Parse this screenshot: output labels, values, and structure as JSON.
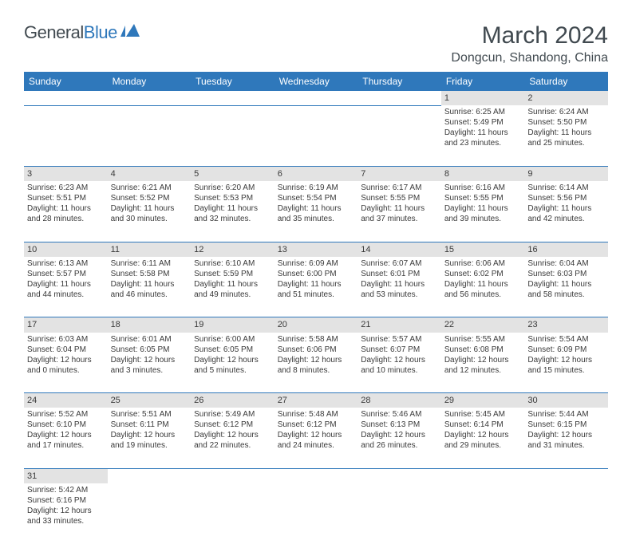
{
  "logo": {
    "text_part1": "General",
    "text_part2": "Blue"
  },
  "title": "March 2024",
  "location": "Dongcun, Shandong, China",
  "header_bg": "#2f78bb",
  "header_fg": "#ffffff",
  "daynum_bg": "#e3e3e3",
  "border_color": "#2f78bb",
  "text_color": "#3a3a3a",
  "title_color": "#414a50",
  "daynames": [
    "Sunday",
    "Monday",
    "Tuesday",
    "Wednesday",
    "Thursday",
    "Friday",
    "Saturday"
  ],
  "weeks": [
    [
      null,
      null,
      null,
      null,
      null,
      {
        "n": "1",
        "sr": "Sunrise: 6:25 AM",
        "ss": "Sunset: 5:49 PM",
        "d1": "Daylight: 11 hours",
        "d2": "and 23 minutes."
      },
      {
        "n": "2",
        "sr": "Sunrise: 6:24 AM",
        "ss": "Sunset: 5:50 PM",
        "d1": "Daylight: 11 hours",
        "d2": "and 25 minutes."
      }
    ],
    [
      {
        "n": "3",
        "sr": "Sunrise: 6:23 AM",
        "ss": "Sunset: 5:51 PM",
        "d1": "Daylight: 11 hours",
        "d2": "and 28 minutes."
      },
      {
        "n": "4",
        "sr": "Sunrise: 6:21 AM",
        "ss": "Sunset: 5:52 PM",
        "d1": "Daylight: 11 hours",
        "d2": "and 30 minutes."
      },
      {
        "n": "5",
        "sr": "Sunrise: 6:20 AM",
        "ss": "Sunset: 5:53 PM",
        "d1": "Daylight: 11 hours",
        "d2": "and 32 minutes."
      },
      {
        "n": "6",
        "sr": "Sunrise: 6:19 AM",
        "ss": "Sunset: 5:54 PM",
        "d1": "Daylight: 11 hours",
        "d2": "and 35 minutes."
      },
      {
        "n": "7",
        "sr": "Sunrise: 6:17 AM",
        "ss": "Sunset: 5:55 PM",
        "d1": "Daylight: 11 hours",
        "d2": "and 37 minutes."
      },
      {
        "n": "8",
        "sr": "Sunrise: 6:16 AM",
        "ss": "Sunset: 5:55 PM",
        "d1": "Daylight: 11 hours",
        "d2": "and 39 minutes."
      },
      {
        "n": "9",
        "sr": "Sunrise: 6:14 AM",
        "ss": "Sunset: 5:56 PM",
        "d1": "Daylight: 11 hours",
        "d2": "and 42 minutes."
      }
    ],
    [
      {
        "n": "10",
        "sr": "Sunrise: 6:13 AM",
        "ss": "Sunset: 5:57 PM",
        "d1": "Daylight: 11 hours",
        "d2": "and 44 minutes."
      },
      {
        "n": "11",
        "sr": "Sunrise: 6:11 AM",
        "ss": "Sunset: 5:58 PM",
        "d1": "Daylight: 11 hours",
        "d2": "and 46 minutes."
      },
      {
        "n": "12",
        "sr": "Sunrise: 6:10 AM",
        "ss": "Sunset: 5:59 PM",
        "d1": "Daylight: 11 hours",
        "d2": "and 49 minutes."
      },
      {
        "n": "13",
        "sr": "Sunrise: 6:09 AM",
        "ss": "Sunset: 6:00 PM",
        "d1": "Daylight: 11 hours",
        "d2": "and 51 minutes."
      },
      {
        "n": "14",
        "sr": "Sunrise: 6:07 AM",
        "ss": "Sunset: 6:01 PM",
        "d1": "Daylight: 11 hours",
        "d2": "and 53 minutes."
      },
      {
        "n": "15",
        "sr": "Sunrise: 6:06 AM",
        "ss": "Sunset: 6:02 PM",
        "d1": "Daylight: 11 hours",
        "d2": "and 56 minutes."
      },
      {
        "n": "16",
        "sr": "Sunrise: 6:04 AM",
        "ss": "Sunset: 6:03 PM",
        "d1": "Daylight: 11 hours",
        "d2": "and 58 minutes."
      }
    ],
    [
      {
        "n": "17",
        "sr": "Sunrise: 6:03 AM",
        "ss": "Sunset: 6:04 PM",
        "d1": "Daylight: 12 hours",
        "d2": "and 0 minutes."
      },
      {
        "n": "18",
        "sr": "Sunrise: 6:01 AM",
        "ss": "Sunset: 6:05 PM",
        "d1": "Daylight: 12 hours",
        "d2": "and 3 minutes."
      },
      {
        "n": "19",
        "sr": "Sunrise: 6:00 AM",
        "ss": "Sunset: 6:05 PM",
        "d1": "Daylight: 12 hours",
        "d2": "and 5 minutes."
      },
      {
        "n": "20",
        "sr": "Sunrise: 5:58 AM",
        "ss": "Sunset: 6:06 PM",
        "d1": "Daylight: 12 hours",
        "d2": "and 8 minutes."
      },
      {
        "n": "21",
        "sr": "Sunrise: 5:57 AM",
        "ss": "Sunset: 6:07 PM",
        "d1": "Daylight: 12 hours",
        "d2": "and 10 minutes."
      },
      {
        "n": "22",
        "sr": "Sunrise: 5:55 AM",
        "ss": "Sunset: 6:08 PM",
        "d1": "Daylight: 12 hours",
        "d2": "and 12 minutes."
      },
      {
        "n": "23",
        "sr": "Sunrise: 5:54 AM",
        "ss": "Sunset: 6:09 PM",
        "d1": "Daylight: 12 hours",
        "d2": "and 15 minutes."
      }
    ],
    [
      {
        "n": "24",
        "sr": "Sunrise: 5:52 AM",
        "ss": "Sunset: 6:10 PM",
        "d1": "Daylight: 12 hours",
        "d2": "and 17 minutes."
      },
      {
        "n": "25",
        "sr": "Sunrise: 5:51 AM",
        "ss": "Sunset: 6:11 PM",
        "d1": "Daylight: 12 hours",
        "d2": "and 19 minutes."
      },
      {
        "n": "26",
        "sr": "Sunrise: 5:49 AM",
        "ss": "Sunset: 6:12 PM",
        "d1": "Daylight: 12 hours",
        "d2": "and 22 minutes."
      },
      {
        "n": "27",
        "sr": "Sunrise: 5:48 AM",
        "ss": "Sunset: 6:12 PM",
        "d1": "Daylight: 12 hours",
        "d2": "and 24 minutes."
      },
      {
        "n": "28",
        "sr": "Sunrise: 5:46 AM",
        "ss": "Sunset: 6:13 PM",
        "d1": "Daylight: 12 hours",
        "d2": "and 26 minutes."
      },
      {
        "n": "29",
        "sr": "Sunrise: 5:45 AM",
        "ss": "Sunset: 6:14 PM",
        "d1": "Daylight: 12 hours",
        "d2": "and 29 minutes."
      },
      {
        "n": "30",
        "sr": "Sunrise: 5:44 AM",
        "ss": "Sunset: 6:15 PM",
        "d1": "Daylight: 12 hours",
        "d2": "and 31 minutes."
      }
    ],
    [
      {
        "n": "31",
        "sr": "Sunrise: 5:42 AM",
        "ss": "Sunset: 6:16 PM",
        "d1": "Daylight: 12 hours",
        "d2": "and 33 minutes."
      },
      null,
      null,
      null,
      null,
      null,
      null
    ]
  ]
}
